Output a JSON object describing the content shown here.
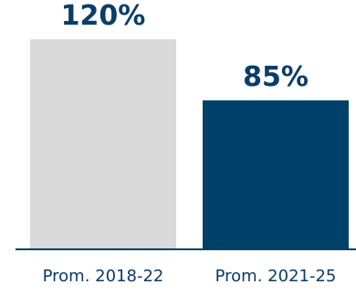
{
  "chart_data": {
    "type": "bar",
    "categories": [
      "Prom. 2018-22",
      "Prom. 2021-25"
    ],
    "values": [
      120,
      85
    ],
    "data_labels": [
      "120%",
      "85%"
    ],
    "colors": [
      "#d9d9d9",
      "#00416a"
    ],
    "label_color": "#0b3d6a",
    "axis_color": "#00416a",
    "ylim": [
      0,
      130
    ],
    "grid": false,
    "legend": "none"
  }
}
